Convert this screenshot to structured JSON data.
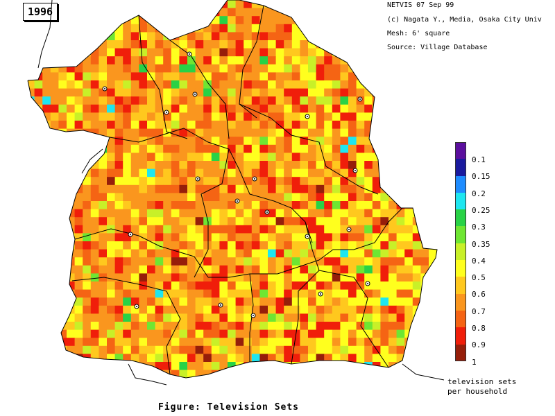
{
  "year": "1996",
  "info": {
    "line1": "NETVIS 07 Sep 99",
    "line2": "(c) Nagata Y., Media, Osaka City Univ",
    "line3": "Mesh:  6' square",
    "line4": "Source:  Village Database"
  },
  "legend": {
    "items": [
      {
        "label": "0.1",
        "color": "#5b0f9e"
      },
      {
        "label": "0.15",
        "color": "#1a1a9e"
      },
      {
        "label": "0.2",
        "color": "#1e8cff"
      },
      {
        "label": "0.25",
        "color": "#1ee6f0"
      },
      {
        "label": "0.3",
        "color": "#28d246"
      },
      {
        "label": "0.35",
        "color": "#6ee632"
      },
      {
        "label": "0.4",
        "color": "#c8f028"
      },
      {
        "label": "0.5",
        "color": "#ffff1e"
      },
      {
        "label": "0.6",
        "color": "#ffc81e"
      },
      {
        "label": "0.7",
        "color": "#fa961e"
      },
      {
        "label": "0.8",
        "color": "#f56414"
      },
      {
        "label": "0.9",
        "color": "#f01e0a"
      },
      {
        "label": "1",
        "color": "#961e0a"
      }
    ],
    "title_line1": "television sets",
    "title_line2": "per household"
  },
  "caption": "Figure: Television Sets",
  "map": {
    "variable": "television sets per household",
    "predominant_value_range": [
      0.6,
      0.9
    ],
    "background_color": "#ffffff"
  }
}
